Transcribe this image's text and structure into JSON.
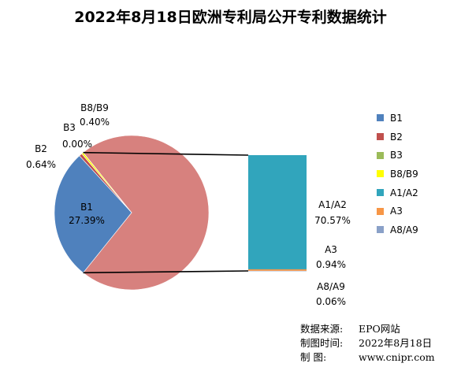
{
  "title": "2022年8月18日欧洲专利局公开专利数据统计",
  "chart_data": {
    "type": "bar-of-pie",
    "pie": [
      {
        "name": "B1",
        "label_value": "27.39%",
        "value": 27.39,
        "color": "#4f81bd"
      },
      {
        "name": "B2",
        "label_value": "0.64%",
        "value": 0.64,
        "color": "#c0504d"
      },
      {
        "name": "B3",
        "label_value": "0.00%",
        "value": 0.0,
        "color": "#9bbb59"
      },
      {
        "name": "B8/B9",
        "label_value": "0.40%",
        "value": 0.4,
        "color": "#ffff00"
      }
    ],
    "other_total": 71.57,
    "other_color": "#d7817e",
    "bar": [
      {
        "name": "A1/A2",
        "label_value": "70.57%",
        "value": 70.57,
        "color": "#31a5bc"
      },
      {
        "name": "A3",
        "label_value": "0.94%",
        "value": 0.94,
        "color": "#f79646"
      },
      {
        "name": "A8/A9",
        "label_value": "0.06%",
        "value": 0.06,
        "color": "#8aa1c8"
      }
    ]
  },
  "legend": [
    {
      "name": "B1",
      "color": "#4f81bd"
    },
    {
      "name": "B2",
      "color": "#c0504d"
    },
    {
      "name": "B3",
      "color": "#9bbb59"
    },
    {
      "name": "B8/B9",
      "color": "#ffff00"
    },
    {
      "name": "A1/A2",
      "color": "#31a5bc"
    },
    {
      "name": "A3",
      "color": "#f79646"
    },
    {
      "name": "A8/A9",
      "color": "#8aa1c8"
    }
  ],
  "source": {
    "source_key": "数据来源:",
    "source_val": "EPO网站",
    "date_key": "制图时间:",
    "date_val": "2022年8月18日",
    "maker_key": "制        图:",
    "maker_val": "www.cnipr.com"
  }
}
